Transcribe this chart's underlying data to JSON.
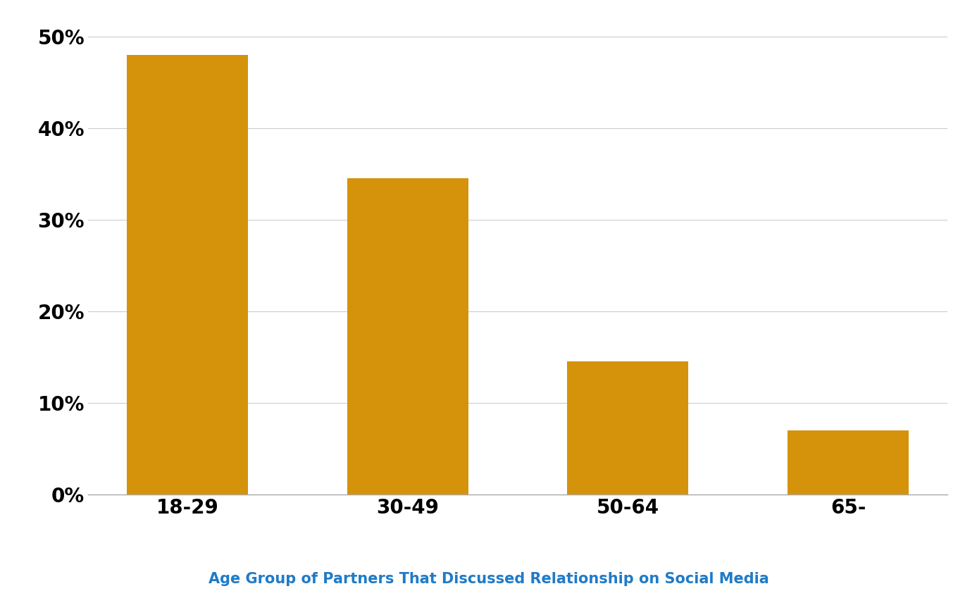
{
  "categories": [
    "18-29",
    "30-49",
    "50-64",
    "65-"
  ],
  "values": [
    0.48,
    0.345,
    0.145,
    0.07
  ],
  "bar_color": "#D4930A",
  "ylim": [
    0,
    0.52
  ],
  "yticks": [
    0.0,
    0.1,
    0.2,
    0.3,
    0.4,
    0.5
  ],
  "xtick_fontsize": 20,
  "ytick_fontsize": 20,
  "title": "Age Group of Partners That Discussed Relationship on Social Media",
  "title_color": "#1F7BC8",
  "title_fontsize": 15,
  "background_color": "#ffffff",
  "grid_color": "#cccccc",
  "bar_width": 0.55
}
